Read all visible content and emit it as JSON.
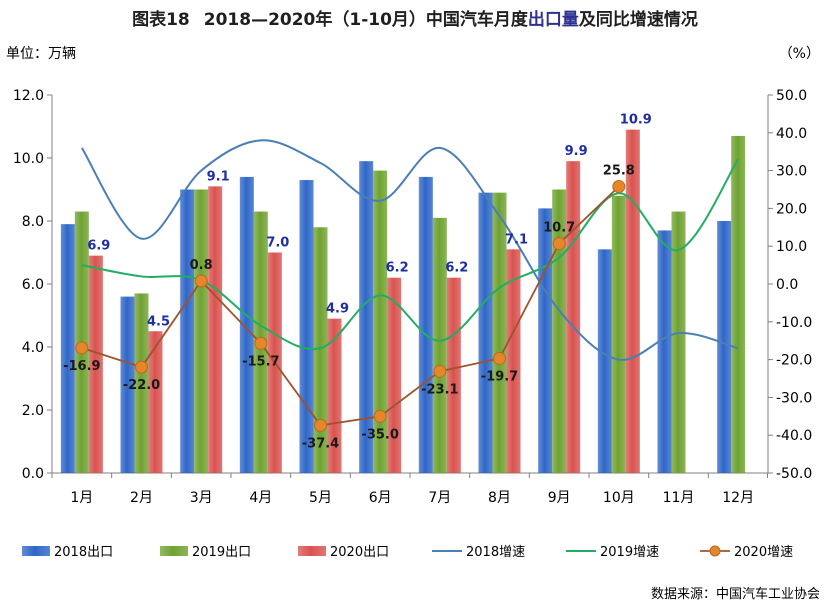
{
  "title": {
    "prefix": "图表18",
    "main_a": "2018—2020年（1-10月）中国汽车月度",
    "main_b": "出口量",
    "main_c": "及同比增速情况"
  },
  "left_unit": "单位：万辆",
  "right_unit": "（%）",
  "source": "数据来源：中国汽车工业协会",
  "colors": {
    "bar2018": "#2f67c8",
    "bar2019": "#6fa231",
    "bar2020": "#d9534f",
    "line2018": "#4a7fb6",
    "line2019": "#22ad63",
    "line2020": "#a0522d",
    "marker2020": "#e5862a"
  },
  "chart_data": {
    "type": "bar",
    "categories": [
      "1月",
      "2月",
      "3月",
      "4月",
      "5月",
      "6月",
      "7月",
      "8月",
      "9月",
      "10月",
      "11月",
      "12月"
    ],
    "y_left": {
      "min": 0,
      "max": 12,
      "ticks": [
        "0.0",
        "2.0",
        "4.0",
        "6.0",
        "8.0",
        "10.0",
        "12.0"
      ]
    },
    "y_right": {
      "min": -50,
      "max": 50,
      "ticks": [
        "-50.0",
        "-40.0",
        "-30.0",
        "-20.0",
        "-10.0",
        "0.0",
        "10.0",
        "20.0",
        "30.0",
        "40.0",
        "50.0"
      ]
    },
    "bars": [
      {
        "name": "2018出口",
        "values": [
          7.9,
          5.6,
          9.0,
          9.4,
          9.3,
          9.9,
          9.4,
          8.9,
          8.4,
          7.1,
          7.7,
          8.0
        ]
      },
      {
        "name": "2019出口",
        "values": [
          8.3,
          5.7,
          9.0,
          8.3,
          7.8,
          9.6,
          8.1,
          8.9,
          9.0,
          8.8,
          8.3,
          10.7
        ]
      },
      {
        "name": "2020出口",
        "values": [
          6.9,
          4.5,
          9.1,
          7.0,
          4.9,
          6.2,
          6.2,
          7.1,
          9.9,
          10.9,
          null,
          null
        ]
      }
    ],
    "bar_labels_2020": [
      "6.9",
      "4.5",
      "9.1",
      "7.0",
      "4.9",
      "6.2",
      "6.2",
      "7.1",
      "9.9",
      "10.9"
    ],
    "lines": [
      {
        "name": "2018增速",
        "values": [
          36,
          12,
          30,
          38,
          32,
          22,
          36,
          18,
          -7,
          -20,
          -13,
          -17
        ]
      },
      {
        "name": "2019增速",
        "values": [
          5,
          2,
          1,
          -11,
          -17,
          -3,
          -15,
          -1,
          7,
          24,
          9,
          33
        ]
      },
      {
        "name": "2020增速",
        "values": [
          -16.9,
          -22.0,
          0.8,
          -15.7,
          -37.4,
          -35.0,
          -23.1,
          -19.7,
          10.7,
          25.8,
          null,
          null
        ]
      }
    ],
    "growth_labels_2020": [
      "-16.9",
      "-22.0",
      "0.8",
      "-15.7",
      "-37.4",
      "-35.0",
      "-23.1",
      "-19.7",
      "10.7",
      "25.8"
    ],
    "legend": [
      "2018出口",
      "2019出口",
      "2020出口",
      "2018增速",
      "2019增速",
      "2020增速"
    ],
    "legend_position": "bottom",
    "grid": false
  }
}
